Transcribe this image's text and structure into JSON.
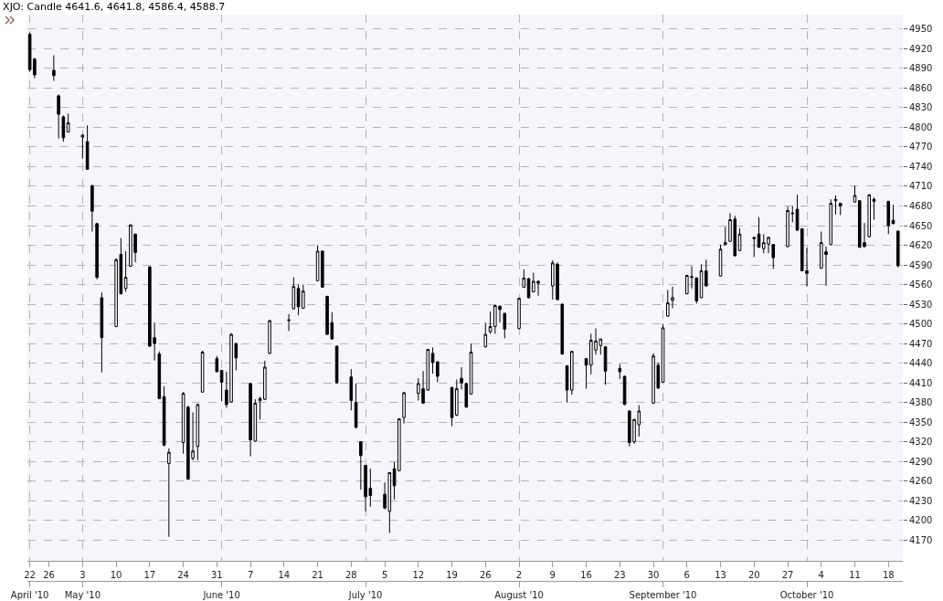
{
  "chart_data": {
    "type": "candlestick",
    "title": "XJO: Candle 4641.6, 4641.8, 4586.4, 4588.7",
    "color": "#000000",
    "x": [
      "--04-22",
      "--04-23",
      "--04-27",
      "--04-28",
      "--04-29",
      "--04-30",
      "--05-03",
      "--05-04",
      "--05-05",
      "--05-06",
      "--05-07",
      "--05-10",
      "--05-11",
      "--05-12",
      "--05-13",
      "--05-14",
      "--05-17",
      "--05-18",
      "--05-19",
      "--05-20",
      "--05-21",
      "--05-24",
      "--05-25",
      "--05-26",
      "--05-27",
      "--05-28",
      "--05-31",
      "--06-01",
      "--06-02",
      "--06-03",
      "--06-04",
      "--06-07",
      "--06-08",
      "--06-09",
      "--06-10",
      "--06-11",
      "--06-15",
      "--06-16",
      "--06-17",
      "--06-18",
      "--06-21",
      "--06-22",
      "--06-23",
      "--06-24",
      "--06-25",
      "--06-28",
      "--06-29",
      "--06-30",
      "--07-01",
      "--07-02",
      "--07-05",
      "--07-06",
      "--07-07",
      "--07-08",
      "--07-09",
      "--07-12",
      "--07-13",
      "--07-14",
      "--07-15",
      "--07-16",
      "--07-19",
      "--07-20",
      "--07-21",
      "--07-22",
      "--07-23",
      "--07-26",
      "--07-27",
      "--07-28",
      "--07-29",
      "--07-30",
      "--08-02",
      "--08-03",
      "--08-04",
      "--08-05",
      "--08-06",
      "--08-09",
      "--08-10",
      "--08-11",
      "--08-12",
      "--08-13",
      "--08-16",
      "--08-17",
      "--08-18",
      "--08-19",
      "--08-20",
      "--08-23",
      "--08-24",
      "--08-25",
      "--08-26",
      "--08-27",
      "--08-30",
      "--08-31",
      "--09-01",
      "--09-02",
      "--09-03",
      "--09-06",
      "--09-07",
      "--09-08",
      "--09-09",
      "--09-10",
      "--09-13",
      "--09-14",
      "--09-15",
      "--09-16",
      "--09-17",
      "--09-20",
      "--09-21",
      "--09-22",
      "--09-23",
      "--09-24",
      "--09-27",
      "--09-28",
      "--09-29",
      "--09-30",
      "--10-01",
      "--10-04",
      "--10-05",
      "--10-06",
      "--10-07",
      "--10-08",
      "--10-11",
      "--10-12",
      "--10-13",
      "--10-14",
      "--10-15",
      "--10-18",
      "--10-19",
      "--10-20"
    ],
    "ohlc": [
      [
        4942,
        4945,
        4885,
        4888
      ],
      [
        4904,
        4906,
        4875,
        4880
      ],
      [
        4887,
        4910,
        4871,
        4879
      ],
      [
        4848,
        4850,
        4783,
        4820
      ],
      [
        4816,
        4818,
        4778,
        4784
      ],
      [
        4793,
        4821,
        4792,
        4807
      ],
      [
        4785,
        4790,
        4752,
        4788
      ],
      [
        4778,
        4803,
        4735,
        4736
      ],
      [
        4711,
        4712,
        4641,
        4672
      ],
      [
        4653,
        4654,
        4568,
        4571
      ],
      [
        4540,
        4548,
        4426,
        4479
      ],
      [
        4496,
        4600,
        4495,
        4598
      ],
      [
        4606,
        4631,
        4545,
        4546
      ],
      [
        4554,
        4611,
        4549,
        4571
      ],
      [
        4588,
        4652,
        4587,
        4651
      ],
      [
        4637,
        4638,
        4594,
        4609
      ],
      [
        4587,
        4588,
        4465,
        4466
      ],
      [
        4479,
        4502,
        4444,
        4470
      ],
      [
        4454,
        4458,
        4385,
        4386
      ],
      [
        4389,
        4405,
        4313,
        4315
      ],
      [
        4287,
        4310,
        4175,
        4304
      ],
      [
        4319,
        4396,
        4302,
        4394
      ],
      [
        4373,
        4375,
        4262,
        4263
      ],
      [
        4295,
        4365,
        4292,
        4306
      ],
      [
        4313,
        4378,
        4292,
        4377
      ],
      [
        4396,
        4459,
        4395,
        4457
      ],
      [
        4447,
        4451,
        4427,
        4427
      ],
      [
        4429,
        4429,
        4382,
        4411
      ],
      [
        4399,
        4427,
        4372,
        4377
      ],
      [
        4381,
        4486,
        4380,
        4484
      ],
      [
        4470,
        4471,
        4429,
        4448
      ],
      [
        4409,
        4410,
        4298,
        4323
      ],
      [
        4321,
        4385,
        4320,
        4379
      ],
      [
        4383,
        4389,
        4354,
        4386
      ],
      [
        4385,
        4444,
        4384,
        4434
      ],
      [
        4455,
        4506,
        4454,
        4505
      ],
      [
        4505,
        4515,
        4489,
        4506
      ],
      [
        4523,
        4571,
        4522,
        4557
      ],
      [
        4554,
        4560,
        4513,
        4526
      ],
      [
        4524,
        4560,
        4523,
        4550
      ],
      [
        4566,
        4620,
        4565,
        4611
      ],
      [
        4611,
        4612,
        4556,
        4556
      ],
      [
        4542,
        4543,
        4483,
        4484
      ],
      [
        4502,
        4518,
        4476,
        4477
      ],
      [
        4466,
        4467,
        4409,
        4410
      ],
      [
        4419,
        4431,
        4368,
        4383
      ],
      [
        4380,
        4409,
        4341,
        4342
      ],
      [
        4320,
        4321,
        4247,
        4299
      ],
      [
        4284,
        4285,
        4214,
        4236
      ],
      [
        4249,
        4279,
        4221,
        4238
      ],
      [
        4240,
        4258,
        4217,
        4219
      ],
      [
        4214,
        4274,
        4181,
        4273
      ],
      [
        4279,
        4289,
        4232,
        4253
      ],
      [
        4276,
        4356,
        4275,
        4355
      ],
      [
        4357,
        4396,
        4348,
        4395
      ],
      [
        4394,
        4417,
        4383,
        4409
      ],
      [
        4401,
        4428,
        4378,
        4379
      ],
      [
        4399,
        4462,
        4398,
        4461
      ],
      [
        4455,
        4464,
        4424,
        4441
      ],
      [
        4442,
        4443,
        4411,
        4420
      ],
      [
        4403,
        4404,
        4344,
        4357
      ],
      [
        4361,
        4415,
        4359,
        4401
      ],
      [
        4417,
        4434,
        4400,
        4410
      ],
      [
        4409,
        4410,
        4372,
        4373
      ],
      [
        4393,
        4470,
        4392,
        4457
      ],
      [
        4465,
        4502,
        4464,
        4484
      ],
      [
        4488,
        4519,
        4485,
        4496
      ],
      [
        4496,
        4529,
        4485,
        4528
      ],
      [
        4527,
        4528,
        4502,
        4522
      ],
      [
        4516,
        4517,
        4478,
        4492
      ],
      [
        4493,
        4540,
        4492,
        4539
      ],
      [
        4556,
        4583,
        4555,
        4570
      ],
      [
        4569,
        4570,
        4539,
        4540
      ],
      [
        4549,
        4578,
        4548,
        4565
      ],
      [
        4565,
        4566,
        4543,
        4562
      ],
      [
        4558,
        4597,
        4537,
        4593
      ],
      [
        4591,
        4594,
        4536,
        4537
      ],
      [
        4530,
        4531,
        4453,
        4454
      ],
      [
        4436,
        4437,
        4380,
        4399
      ],
      [
        4399,
        4459,
        4392,
        4458
      ],
      [
        4447,
        4448,
        4401,
        4437
      ],
      [
        4437,
        4485,
        4423,
        4475
      ],
      [
        4460,
        4493,
        4453,
        4474
      ],
      [
        4467,
        4477,
        4453,
        4477
      ],
      [
        4465,
        4466,
        4407,
        4428
      ],
      [
        4432,
        4439,
        4416,
        4427
      ],
      [
        4420,
        4421,
        4376,
        4377
      ],
      [
        4367,
        4368,
        4313,
        4319
      ],
      [
        4320,
        4355,
        4317,
        4354
      ],
      [
        4346,
        4376,
        4328,
        4367
      ],
      [
        4379,
        4455,
        4378,
        4451
      ],
      [
        4437,
        4441,
        4401,
        4402
      ],
      [
        4411,
        4500,
        4410,
        4494
      ],
      [
        4512,
        4552,
        4511,
        4532
      ],
      [
        4536,
        4557,
        4524,
        4540
      ],
      [
        4546,
        4575,
        4545,
        4574
      ],
      [
        4571,
        4588,
        4554,
        4572
      ],
      [
        4570,
        4571,
        4531,
        4535
      ],
      [
        4540,
        4591,
        4539,
        4581
      ],
      [
        4581,
        4598,
        4557,
        4558
      ],
      [
        4573,
        4621,
        4572,
        4614
      ],
      [
        4621,
        4648,
        4620,
        4624
      ],
      [
        4626,
        4669,
        4625,
        4659
      ],
      [
        4660,
        4665,
        4603,
        4604
      ],
      [
        4612,
        4646,
        4611,
        4637
      ],
      [
        4632,
        4633,
        4602,
        4630
      ],
      [
        4637,
        4663,
        4616,
        4617
      ],
      [
        4615,
        4637,
        4608,
        4624
      ],
      [
        4622,
        4633,
        4608,
        4632
      ],
      [
        4621,
        4622,
        4584,
        4601
      ],
      [
        4618,
        4679,
        4617,
        4673
      ],
      [
        4668,
        4680,
        4655,
        4669
      ],
      [
        4675,
        4697,
        4642,
        4643
      ],
      [
        4645,
        4646,
        4580,
        4581
      ],
      [
        4581,
        4616,
        4557,
        4577
      ],
      [
        4585,
        4641,
        4584,
        4624
      ],
      [
        4610,
        4618,
        4558,
        4606
      ],
      [
        4621,
        4690,
        4620,
        4684
      ],
      [
        4688,
        4696,
        4667,
        4690
      ],
      [
        4684,
        4685,
        4666,
        4680
      ],
      [
        4686,
        4711,
        4685,
        4696
      ],
      [
        4688,
        4689,
        4616,
        4617
      ],
      [
        4624,
        4654,
        4617,
        4618
      ],
      [
        4633,
        4698,
        4632,
        4697
      ],
      [
        4690,
        4693,
        4659,
        4687
      ],
      [
        4687,
        4688,
        4637,
        4650
      ],
      [
        4658,
        4682,
        4652,
        4653
      ],
      [
        4641.6,
        4641.8,
        4586.4,
        4588.7
      ]
    ],
    "xlim": [
      "--04-21T12:00",
      "--10-21T00:00"
    ],
    "xticks": [
      {
        "value": "--04-22",
        "label": "22"
      },
      {
        "value": "--04-26",
        "label": "26"
      },
      {
        "value": "--05-03",
        "label": "3"
      },
      {
        "value": "--05-10",
        "label": "10"
      },
      {
        "value": "--05-17",
        "label": "17"
      },
      {
        "value": "--05-24",
        "label": "24"
      },
      {
        "value": "--05-31",
        "label": "31"
      },
      {
        "value": "--06-07",
        "label": "7"
      },
      {
        "value": "--06-14",
        "label": "14"
      },
      {
        "value": "--06-21",
        "label": "21"
      },
      {
        "value": "--06-28",
        "label": "28"
      },
      {
        "value": "--07-05",
        "label": "5"
      },
      {
        "value": "--07-12",
        "label": "12"
      },
      {
        "value": "--07-19",
        "label": "19"
      },
      {
        "value": "--07-26",
        "label": "26"
      },
      {
        "value": "--08-02",
        "label": "2"
      },
      {
        "value": "--08-09",
        "label": "9"
      },
      {
        "value": "--08-16",
        "label": "16"
      },
      {
        "value": "--08-23",
        "label": "23"
      },
      {
        "value": "--08-30",
        "label": "30"
      },
      {
        "value": "--09-06",
        "label": "6"
      },
      {
        "value": "--09-13",
        "label": "13"
      },
      {
        "value": "--09-20",
        "label": "20"
      },
      {
        "value": "--09-27",
        "label": "27"
      },
      {
        "value": "--10-04",
        "label": "4"
      },
      {
        "value": "--10-11",
        "label": "11"
      },
      {
        "value": "--10-18",
        "label": "18"
      }
    ],
    "x2lim": [
      "--04-21T12:00",
      "--10-21T00:00"
    ],
    "x2ticks": [
      {
        "value": "--04-22",
        "label": "April '10"
      },
      {
        "value": "--05-03",
        "label": "May '10"
      },
      {
        "value": "--06-01",
        "label": "June '10"
      },
      {
        "value": "--07-01",
        "label": "July '10"
      },
      {
        "value": "--08-02",
        "label": "August '10"
      },
      {
        "value": "--09-01",
        "label": "September '10"
      },
      {
        "value": "--10-01",
        "label": "October '10"
      }
    ],
    "ylim": [
      4138,
      4972
    ],
    "yticks": [
      4170,
      4200,
      4230,
      4260,
      4290,
      4320,
      4350,
      4380,
      4410,
      4440,
      4470,
      4500,
      4530,
      4560,
      4590,
      4620,
      4650,
      4680,
      4710,
      4740,
      4770,
      4800,
      4830,
      4860,
      4890,
      4920,
      4950
    ],
    "grid": true
  }
}
